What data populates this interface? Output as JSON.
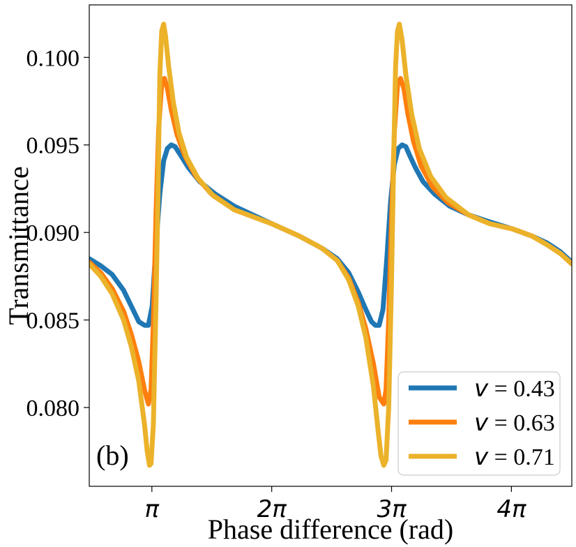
{
  "chart_data": {
    "type": "line",
    "panel_label": "(b)",
    "xlabel": "Phase difference (rad)",
    "ylabel": "Transmittance",
    "xlim": [
      1.5,
      14.15
    ],
    "ylim": [
      0.0755,
      0.103
    ],
    "x_unit": "rad",
    "x_ticks": [
      {
        "value": 3.14159,
        "label": "π"
      },
      {
        "value": 6.28319,
        "label": "2π"
      },
      {
        "value": 9.42478,
        "label": "3π"
      },
      {
        "value": 12.56637,
        "label": "4π"
      }
    ],
    "y_ticks": [
      {
        "value": 0.08,
        "label": "0.080"
      },
      {
        "value": 0.085,
        "label": "0.085"
      },
      {
        "value": 0.09,
        "label": "0.090"
      },
      {
        "value": 0.095,
        "label": "0.095"
      },
      {
        "value": 0.1,
        "label": "0.100"
      }
    ],
    "grid": false,
    "legend_position": "bottom-right",
    "series": [
      {
        "name_symbol": "v",
        "name_value": "= 0.43",
        "color": "#1f77b4",
        "x": [
          1.5,
          1.8,
          2.1,
          2.4,
          2.6,
          2.8,
          2.95,
          3.05,
          3.15,
          3.25,
          3.35,
          3.45,
          3.55,
          3.65,
          3.75,
          3.9,
          4.1,
          4.4,
          4.8,
          5.3,
          6.28,
          7.0,
          7.6,
          8.0,
          8.3,
          8.55,
          8.75,
          8.9,
          9.0,
          9.1,
          9.2,
          9.3,
          9.4,
          9.5,
          9.6,
          9.7,
          9.8,
          9.9,
          10.05,
          10.25,
          10.55,
          10.95,
          11.45,
          12.0,
          12.6,
          13.1,
          13.5,
          13.85,
          14.15
        ],
        "y": [
          0.0885,
          0.0881,
          0.0876,
          0.0867,
          0.0858,
          0.0849,
          0.0847,
          0.0847,
          0.0858,
          0.0893,
          0.0922,
          0.0941,
          0.0948,
          0.095,
          0.0949,
          0.0944,
          0.0937,
          0.0929,
          0.0922,
          0.0915,
          0.0905,
          0.0898,
          0.0891,
          0.0885,
          0.0877,
          0.0866,
          0.0856,
          0.0849,
          0.0847,
          0.0847,
          0.0856,
          0.0885,
          0.0918,
          0.0939,
          0.0948,
          0.095,
          0.0949,
          0.0944,
          0.0937,
          0.0929,
          0.0922,
          0.0915,
          0.091,
          0.0906,
          0.0902,
          0.0898,
          0.0894,
          0.0889,
          0.0883
        ]
      },
      {
        "name_symbol": "v",
        "name_value": "= 0.63",
        "color": "#ff7f0e",
        "x": [
          1.5,
          1.8,
          2.1,
          2.4,
          2.6,
          2.8,
          2.95,
          3.05,
          3.12,
          3.18,
          3.25,
          3.32,
          3.4,
          3.47,
          3.55,
          3.65,
          3.8,
          4.0,
          4.3,
          4.7,
          5.3,
          6.28,
          7.0,
          7.6,
          8.0,
          8.3,
          8.55,
          8.75,
          8.95,
          9.1,
          9.22,
          9.28,
          9.35,
          9.42,
          9.5,
          9.58,
          9.66,
          9.75,
          9.85,
          10.0,
          10.2,
          10.5,
          10.9,
          11.45,
          12.0,
          12.6,
          13.1,
          13.5,
          13.85,
          14.15
        ],
        "y": [
          0.0883,
          0.0877,
          0.0868,
          0.0855,
          0.0842,
          0.0826,
          0.081,
          0.0802,
          0.081,
          0.0848,
          0.091,
          0.096,
          0.0985,
          0.0988,
          0.0982,
          0.097,
          0.0956,
          0.0944,
          0.0932,
          0.0922,
          0.0913,
          0.0905,
          0.0898,
          0.0891,
          0.0884,
          0.0874,
          0.086,
          0.0845,
          0.0825,
          0.0806,
          0.0802,
          0.081,
          0.085,
          0.0905,
          0.0958,
          0.0984,
          0.0988,
          0.0982,
          0.0968,
          0.0952,
          0.0938,
          0.0926,
          0.0917,
          0.091,
          0.0905,
          0.0902,
          0.0898,
          0.0893,
          0.0888,
          0.0882
        ]
      },
      {
        "name_symbol": "v",
        "name_value": "= 0.71",
        "color": "#ebb22a",
        "x": [
          1.5,
          1.8,
          2.1,
          2.4,
          2.6,
          2.8,
          2.95,
          3.02,
          3.08,
          3.12,
          3.18,
          3.25,
          3.3,
          3.35,
          3.4,
          3.45,
          3.5,
          3.58,
          3.7,
          3.85,
          4.05,
          4.35,
          4.75,
          5.3,
          6.28,
          7.0,
          7.6,
          8.0,
          8.3,
          8.55,
          8.75,
          8.95,
          9.08,
          9.15,
          9.22,
          9.28,
          9.35,
          9.42,
          9.48,
          9.53,
          9.58,
          9.63,
          9.7,
          9.8,
          9.95,
          10.15,
          10.45,
          10.85,
          11.45,
          12.0,
          12.6,
          13.1,
          13.5,
          13.85,
          14.15
        ],
        "y": [
          0.0882,
          0.0875,
          0.0865,
          0.085,
          0.0835,
          0.0815,
          0.079,
          0.0775,
          0.0767,
          0.0768,
          0.079,
          0.086,
          0.092,
          0.099,
          0.1015,
          0.1019,
          0.1012,
          0.0995,
          0.0975,
          0.0957,
          0.0943,
          0.0931,
          0.0921,
          0.0913,
          0.0905,
          0.0898,
          0.0891,
          0.0884,
          0.0873,
          0.0858,
          0.084,
          0.0812,
          0.0785,
          0.0772,
          0.0767,
          0.077,
          0.08,
          0.087,
          0.094,
          0.0995,
          0.1015,
          0.1019,
          0.101,
          0.099,
          0.0968,
          0.0948,
          0.0932,
          0.092,
          0.091,
          0.0905,
          0.0902,
          0.0898,
          0.0893,
          0.0888,
          0.0882
        ]
      }
    ]
  }
}
